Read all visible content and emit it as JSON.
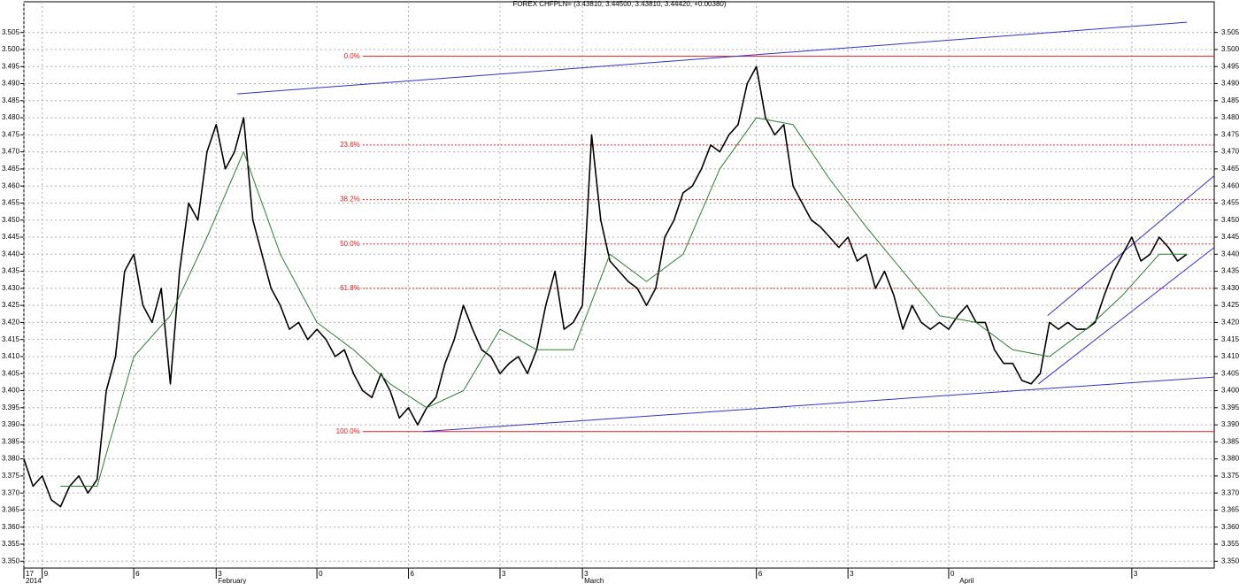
{
  "chart_data": {
    "type": "line",
    "title": "FOREX CHFPLN= (3.43810, 3.44500, 3.43810, 3.44420, +0.00380)",
    "xlim": [
      0,
      130
    ],
    "ylim": [
      3.348,
      3.514
    ],
    "grid": true,
    "xticks": [
      {
        "value": 0,
        "label": "17"
      },
      {
        "value": 2,
        "label": "9"
      },
      {
        "value": 12,
        "label": "6"
      },
      {
        "value": 21,
        "label": "3"
      },
      {
        "value": 32,
        "label": "0"
      },
      {
        "value": 42,
        "label": "6"
      },
      {
        "value": 52,
        "label": "3"
      },
      {
        "value": 61,
        "label": "3"
      },
      {
        "value": 80,
        "label": "6"
      },
      {
        "value": 90,
        "label": "3"
      },
      {
        "value": 101,
        "label": "0"
      },
      {
        "value": 121,
        "label": "3"
      }
    ],
    "month_labels": [
      {
        "value": 0,
        "label": "2014"
      },
      {
        "value": 21,
        "label": "February"
      },
      {
        "value": 61,
        "label": "March"
      },
      {
        "value": 102,
        "label": "April"
      }
    ],
    "yticks": [
      {
        "value": 3.35,
        "label": "3.350"
      },
      {
        "value": 3.355,
        "label": "3.355"
      },
      {
        "value": 3.36,
        "label": "3.360"
      },
      {
        "value": 3.365,
        "label": "3.365"
      },
      {
        "value": 3.37,
        "label": "3.370"
      },
      {
        "value": 3.375,
        "label": "3.375"
      },
      {
        "value": 3.38,
        "label": "3.380"
      },
      {
        "value": 3.385,
        "label": "3.385"
      },
      {
        "value": 3.39,
        "label": "3.390"
      },
      {
        "value": 3.395,
        "label": "3.395"
      },
      {
        "value": 3.4,
        "label": "3.400"
      },
      {
        "value": 3.405,
        "label": "3.405"
      },
      {
        "value": 3.41,
        "label": "3.410"
      },
      {
        "value": 3.415,
        "label": "3.415"
      },
      {
        "value": 3.42,
        "label": "3.420"
      },
      {
        "value": 3.425,
        "label": "3.425"
      },
      {
        "value": 3.43,
        "label": "3.430"
      },
      {
        "value": 3.435,
        "label": "3.435"
      },
      {
        "value": 3.44,
        "label": "3.440"
      },
      {
        "value": 3.445,
        "label": "3.445"
      },
      {
        "value": 3.45,
        "label": "3.450"
      },
      {
        "value": 3.455,
        "label": "3.455"
      },
      {
        "value": 3.46,
        "label": "3.460"
      },
      {
        "value": 3.465,
        "label": "3.465"
      },
      {
        "value": 3.47,
        "label": "3.470"
      },
      {
        "value": 3.475,
        "label": "3.475"
      },
      {
        "value": 3.48,
        "label": "3.480"
      },
      {
        "value": 3.485,
        "label": "3.485"
      },
      {
        "value": 3.49,
        "label": "3.490"
      },
      {
        "value": 3.495,
        "label": "3.495"
      },
      {
        "value": 3.5,
        "label": "3.500"
      },
      {
        "value": 3.505,
        "label": "3.505"
      }
    ],
    "series": [
      {
        "color": "#000000",
        "x": [
          0,
          1,
          2,
          3,
          4,
          5,
          6,
          7,
          8,
          9,
          10,
          11,
          12,
          13,
          14,
          15,
          16,
          17,
          18,
          19,
          20,
          21,
          22,
          23,
          24,
          25,
          26,
          27,
          28,
          29,
          30,
          31,
          32,
          33,
          34,
          35,
          36,
          37,
          38,
          39,
          40,
          41,
          42,
          43,
          44,
          45,
          46,
          47,
          48,
          49,
          50,
          51,
          52,
          53,
          54,
          55,
          56,
          57,
          58,
          59,
          60,
          61,
          62,
          63,
          64,
          65,
          66,
          67,
          68,
          69,
          70,
          71,
          72,
          73,
          74,
          75,
          76,
          77,
          78,
          79,
          80,
          81,
          82,
          83,
          84,
          85,
          86,
          87,
          88,
          89,
          90,
          91,
          92,
          93,
          94,
          95,
          96,
          97,
          98,
          99,
          100,
          101,
          102,
          103,
          104,
          105,
          106,
          107,
          108,
          109,
          110,
          111,
          112,
          113,
          114,
          115,
          116,
          117,
          118,
          119,
          120,
          121,
          122,
          123,
          124,
          125,
          126,
          127
        ],
        "values": [
          3.38,
          3.372,
          3.375,
          3.368,
          3.366,
          3.372,
          3.375,
          3.37,
          3.374,
          3.4,
          3.41,
          3.435,
          3.44,
          3.425,
          3.42,
          3.43,
          3.402,
          3.435,
          3.455,
          3.45,
          3.47,
          3.478,
          3.465,
          3.47,
          3.48,
          3.45,
          3.44,
          3.43,
          3.425,
          3.418,
          3.42,
          3.415,
          3.418,
          3.415,
          3.41,
          3.412,
          3.405,
          3.4,
          3.398,
          3.405,
          3.4,
          3.392,
          3.395,
          3.39,
          3.395,
          3.398,
          3.408,
          3.415,
          3.425,
          3.418,
          3.412,
          3.41,
          3.405,
          3.408,
          3.41,
          3.405,
          3.412,
          3.425,
          3.435,
          3.418,
          3.42,
          3.425,
          3.475,
          3.45,
          3.438,
          3.435,
          3.432,
          3.43,
          3.425,
          3.43,
          3.445,
          3.45,
          3.458,
          3.46,
          3.465,
          3.472,
          3.47,
          3.475,
          3.478,
          3.49,
          3.495,
          3.48,
          3.475,
          3.478,
          3.46,
          3.455,
          3.45,
          3.448,
          3.445,
          3.442,
          3.445,
          3.438,
          3.44,
          3.43,
          3.435,
          3.428,
          3.418,
          3.425,
          3.42,
          3.418,
          3.42,
          3.418,
          3.422,
          3.425,
          3.42,
          3.42,
          3.412,
          3.408,
          3.408,
          3.403,
          3.402,
          3.405,
          3.42,
          3.418,
          3.42,
          3.418,
          3.418,
          3.42,
          3.428,
          3.435,
          3.44,
          3.445,
          3.438,
          3.44,
          3.445,
          3.442,
          3.438,
          3.44
        ]
      },
      {
        "color": "#2e7d32",
        "x": [
          4,
          8,
          12,
          16,
          20,
          24,
          28,
          32,
          36,
          40,
          44,
          48,
          52,
          56,
          60,
          64,
          68,
          72,
          76,
          80,
          84,
          88,
          92,
          96,
          100,
          104,
          108,
          112,
          116,
          120,
          124,
          127
        ],
        "values": [
          3.372,
          3.372,
          3.41,
          3.422,
          3.445,
          3.47,
          3.44,
          3.42,
          3.412,
          3.402,
          3.395,
          3.4,
          3.418,
          3.412,
          3.412,
          3.44,
          3.432,
          3.44,
          3.465,
          3.48,
          3.478,
          3.462,
          3.448,
          3.435,
          3.422,
          3.42,
          3.412,
          3.41,
          3.418,
          3.428,
          3.44,
          3.44
        ]
      }
    ],
    "trendlines": [
      {
        "color": "#3030d0",
        "x": [
          23.3,
          127
        ],
        "values": [
          3.487,
          3.508
        ]
      },
      {
        "color": "#3030d0",
        "x": [
          43.6,
          130
        ],
        "values": [
          3.388,
          3.404
        ]
      },
      {
        "color": "#3030d0",
        "x": [
          111.8,
          130
        ],
        "values": [
          3.422,
          3.463
        ]
      },
      {
        "color": "#3030d0",
        "x": [
          110.8,
          130
        ],
        "values": [
          3.402,
          3.442
        ]
      }
    ],
    "fib_color": "#e02020",
    "fib_x": [
      37,
      130
    ],
    "fib_levels": [
      {
        "label": "0.0%",
        "value": 3.498
      },
      {
        "label": "23.6%",
        "value": 3.472
      },
      {
        "label": "38.2%",
        "value": 3.456
      },
      {
        "label": "50.0%",
        "value": 3.443
      },
      {
        "label": "61.8%",
        "value": 3.43
      },
      {
        "label": "100.0%",
        "value": 3.388
      }
    ]
  }
}
